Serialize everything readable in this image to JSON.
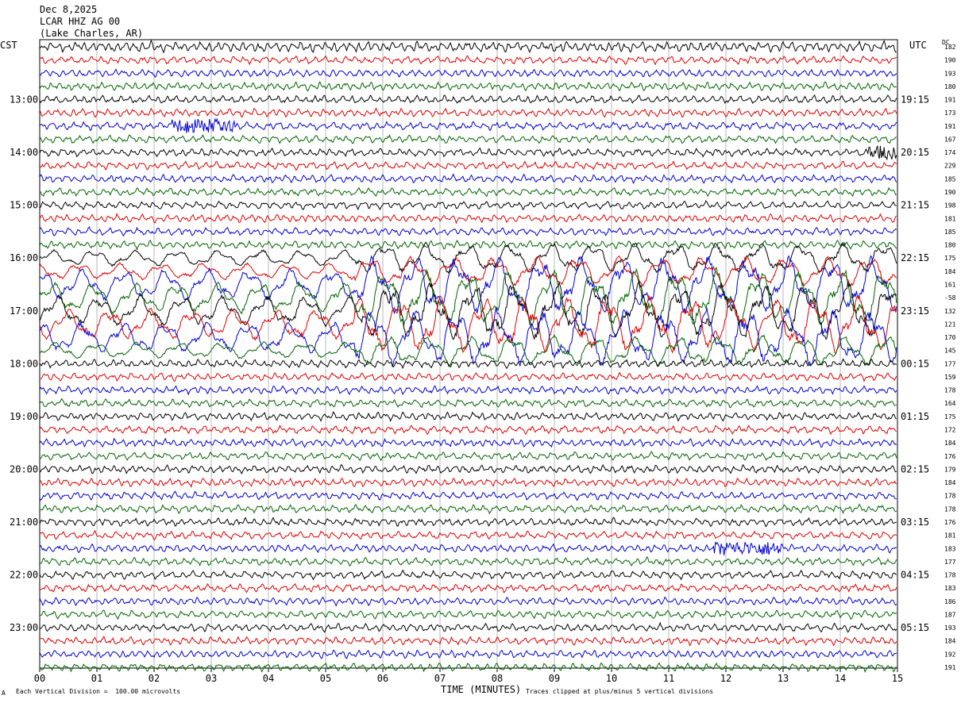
{
  "header": {
    "date": "Dec 8,2025",
    "station": "LCAR HHZ AG 00",
    "location": "(Lake Charles, AR)"
  },
  "left_axis_label": "CST",
  "right_axis_label": "UTC",
  "dc_label": "DC",
  "footer": {
    "scale_note": "Each Vertical Division =  100.00 microvolts",
    "xlabel": "TIME (MINUTES)",
    "clip_note": "Traces clipped at plus/minus 5 vertical divisions",
    "corner_mark": "A"
  },
  "chart_data": {
    "type": "line",
    "title": "LCAR HHZ AG 00",
    "xlabel": "TIME (MINUTES)",
    "xlim": [
      0,
      15
    ],
    "x_ticks": [
      "00",
      "01",
      "02",
      "03",
      "04",
      "05",
      "06",
      "07",
      "08",
      "09",
      "10",
      "11",
      "12",
      "13",
      "14",
      "15"
    ],
    "trace_minutes": 15,
    "trace_count": 48,
    "trace_colors": [
      "#000000",
      "#e00000",
      "#0000d0",
      "#006400"
    ],
    "left_hour_labels": [
      "13:00",
      "14:00",
      "15:00",
      "16:00",
      "17:00",
      "18:00",
      "19:00",
      "20:00",
      "21:00",
      "22:00",
      "23:00"
    ],
    "right_hour_labels": [
      "19:15",
      "20:15",
      "21:15",
      "22:15",
      "23:15",
      "00:15",
      "01:15",
      "02:15",
      "03:15",
      "04:15",
      "05:15"
    ],
    "dc_offsets": [
      "182",
      "190",
      "193",
      "180",
      "191",
      "173",
      "191",
      "167",
      "174",
      "229",
      "185",
      "190",
      "198",
      "181",
      "185",
      "180",
      "175",
      "184",
      "161",
      "-58",
      "132",
      "121",
      "170",
      "145",
      "177",
      "159",
      "178",
      "164",
      "175",
      "172",
      "184",
      "176",
      "179",
      "184",
      "178",
      "178",
      "176",
      "181",
      "183",
      "177",
      "178",
      "183",
      "186",
      "187",
      "193",
      "184",
      "192",
      "191"
    ],
    "events": [
      {
        "trace": 6,
        "start_min": 2.3,
        "end_min": 3.4,
        "color": "#0000d0"
      },
      {
        "trace": 8,
        "start_min": 14.5,
        "end_min": 15.0,
        "color": "#000000"
      },
      {
        "trace": 38,
        "start_min": 11.8,
        "end_min": 13.0,
        "color": "#0000d0"
      }
    ],
    "disturbed_traces": [
      16,
      17,
      18,
      19,
      20,
      21,
      22,
      23
    ]
  }
}
